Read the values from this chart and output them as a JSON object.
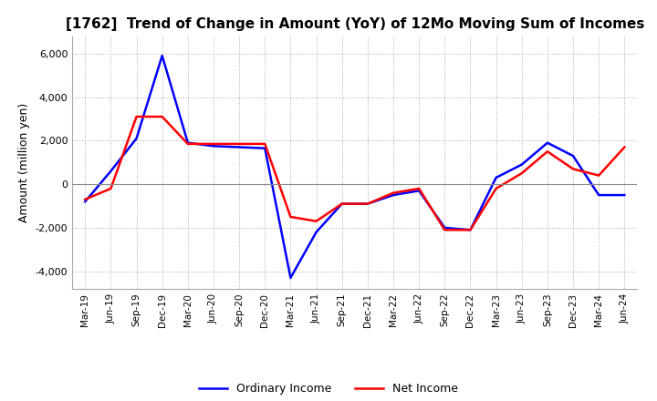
{
  "title": "[1762]  Trend of Change in Amount (YoY) of 12Mo Moving Sum of Incomes",
  "ylabel": "Amount (million yen)",
  "ylim": [
    -4800,
    6800
  ],
  "yticks": [
    -4000,
    -2000,
    0,
    2000,
    4000,
    6000
  ],
  "x_labels": [
    "Mar-19",
    "Jun-19",
    "Sep-19",
    "Dec-19",
    "Mar-20",
    "Jun-20",
    "Sep-20",
    "Dec-20",
    "Mar-21",
    "Jun-21",
    "Sep-21",
    "Dec-21",
    "Mar-22",
    "Jun-22",
    "Sep-22",
    "Dec-22",
    "Mar-23",
    "Jun-23",
    "Sep-23",
    "Dec-23",
    "Mar-24",
    "Jun-24"
  ],
  "ordinary_income": [
    -800,
    600,
    2100,
    5900,
    1900,
    1750,
    1700,
    1650,
    -4300,
    -2200,
    -900,
    -900,
    -500,
    -300,
    -2000,
    -2100,
    300,
    900,
    1900,
    1300,
    -500,
    -500
  ],
  "net_income": [
    -700,
    -200,
    3100,
    3100,
    1850,
    1850,
    1850,
    1850,
    -1500,
    -1700,
    -900,
    -900,
    -400,
    -200,
    -2100,
    -2100,
    -200,
    500,
    1500,
    700,
    400,
    1700
  ],
  "ordinary_income_color": "#0000FF",
  "net_income_color": "#FF0000",
  "background_color": "#FFFFFF",
  "grid_color": "#AAAAAA",
  "title_fontsize": 11,
  "legend_labels": [
    "Ordinary Income",
    "Net Income"
  ]
}
